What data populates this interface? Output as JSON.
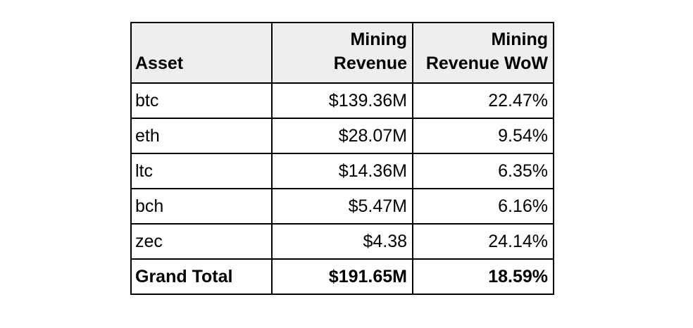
{
  "chart_data": {
    "type": "table",
    "columns": [
      "Asset",
      "Mining Revenue",
      "Mining Revenue WoW"
    ],
    "header_lines": {
      "asset": [
        "Asset"
      ],
      "revenue": [
        "Mining",
        "Revenue"
      ],
      "wow": [
        "Mining",
        "Revenue WoW"
      ]
    },
    "rows": [
      {
        "asset": "btc",
        "revenue": "$139.36M",
        "wow": "22.47%"
      },
      {
        "asset": "eth",
        "revenue": "$28.07M",
        "wow": "9.54%"
      },
      {
        "asset": "ltc",
        "revenue": "$14.36M",
        "wow": "6.35%"
      },
      {
        "asset": "bch",
        "revenue": "$5.47M",
        "wow": "6.16%"
      },
      {
        "asset": "zec",
        "revenue": "$4.38",
        "wow": "24.14%"
      }
    ],
    "total": {
      "asset": "Grand Total",
      "revenue": "$191.65M",
      "wow": "18.59%"
    },
    "colors": {
      "header_background": "#eeeeee",
      "border": "#000000",
      "text": "#000000"
    }
  }
}
